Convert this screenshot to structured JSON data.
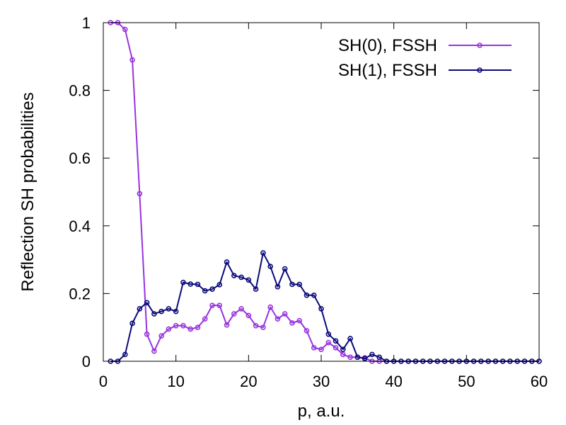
{
  "chart_data": {
    "type": "line",
    "xlabel": "p, a.u.",
    "ylabel": "Reflection SH probabilities",
    "xlim": [
      0,
      60
    ],
    "ylim": [
      0,
      1
    ],
    "xticks": [
      "0",
      "10",
      "20",
      "30",
      "40",
      "50",
      "60"
    ],
    "yticks": [
      "0",
      "0.2",
      "0.4",
      "0.6",
      "0.8",
      "1"
    ],
    "grid": false,
    "legend_position": "top-right",
    "series": [
      {
        "name": "SH(0), FSSH",
        "color": "#9933dd",
        "x": [
          1,
          2,
          3,
          4,
          5,
          6,
          7,
          8,
          9,
          10,
          11,
          12,
          13,
          14,
          15,
          16,
          17,
          18,
          19,
          20,
          21,
          22,
          23,
          24,
          25,
          26,
          27,
          28,
          29,
          30,
          31,
          32,
          33,
          34,
          35,
          36,
          37,
          38,
          39,
          40,
          41,
          42,
          43,
          44,
          45,
          46,
          47,
          48,
          49,
          50,
          51,
          52,
          53,
          54,
          55,
          56,
          57,
          58,
          59,
          60
        ],
        "y": [
          1.0,
          1.0,
          0.98,
          0.89,
          0.495,
          0.08,
          0.03,
          0.075,
          0.095,
          0.105,
          0.105,
          0.095,
          0.1,
          0.125,
          0.165,
          0.165,
          0.107,
          0.14,
          0.155,
          0.135,
          0.105,
          0.1,
          0.16,
          0.125,
          0.14,
          0.113,
          0.12,
          0.09,
          0.04,
          0.035,
          0.055,
          0.04,
          0.02,
          0.012,
          0.012,
          0.01,
          0.0,
          0.0,
          0.0,
          0.0,
          0.0,
          0.0,
          0.0,
          0.0,
          0.0,
          0.0,
          0.0,
          0.0,
          0.0,
          0.0,
          0.0,
          0.0,
          0.0,
          0.0,
          0.0,
          0.0,
          0.0,
          0.0,
          0.0,
          0.0
        ]
      },
      {
        "name": "SH(1), FSSH",
        "color": "#0a0a7a",
        "x": [
          1,
          2,
          3,
          4,
          5,
          6,
          7,
          8,
          9,
          10,
          11,
          12,
          13,
          14,
          15,
          16,
          17,
          18,
          19,
          20,
          21,
          22,
          23,
          24,
          25,
          26,
          27,
          28,
          29,
          30,
          31,
          32,
          33,
          34,
          35,
          36,
          37,
          38,
          39,
          40,
          41,
          42,
          43,
          44,
          45,
          46,
          47,
          48,
          49,
          50,
          51,
          52,
          53,
          54,
          55,
          56,
          57,
          58,
          59,
          60
        ],
        "y": [
          0.0,
          0.0,
          0.02,
          0.112,
          0.155,
          0.173,
          0.14,
          0.147,
          0.155,
          0.147,
          0.233,
          0.228,
          0.227,
          0.208,
          0.213,
          0.226,
          0.293,
          0.253,
          0.248,
          0.24,
          0.213,
          0.32,
          0.28,
          0.22,
          0.273,
          0.227,
          0.227,
          0.195,
          0.195,
          0.155,
          0.08,
          0.06,
          0.035,
          0.067,
          0.012,
          0.008,
          0.02,
          0.012,
          0.0,
          0.0,
          0.0,
          0.0,
          0.0,
          0.0,
          0.0,
          0.0,
          0.0,
          0.0,
          0.0,
          0.0,
          0.0,
          0.0,
          0.0,
          0.0,
          0.0,
          0.0,
          0.0,
          0.0,
          0.0,
          0.0
        ]
      }
    ]
  }
}
